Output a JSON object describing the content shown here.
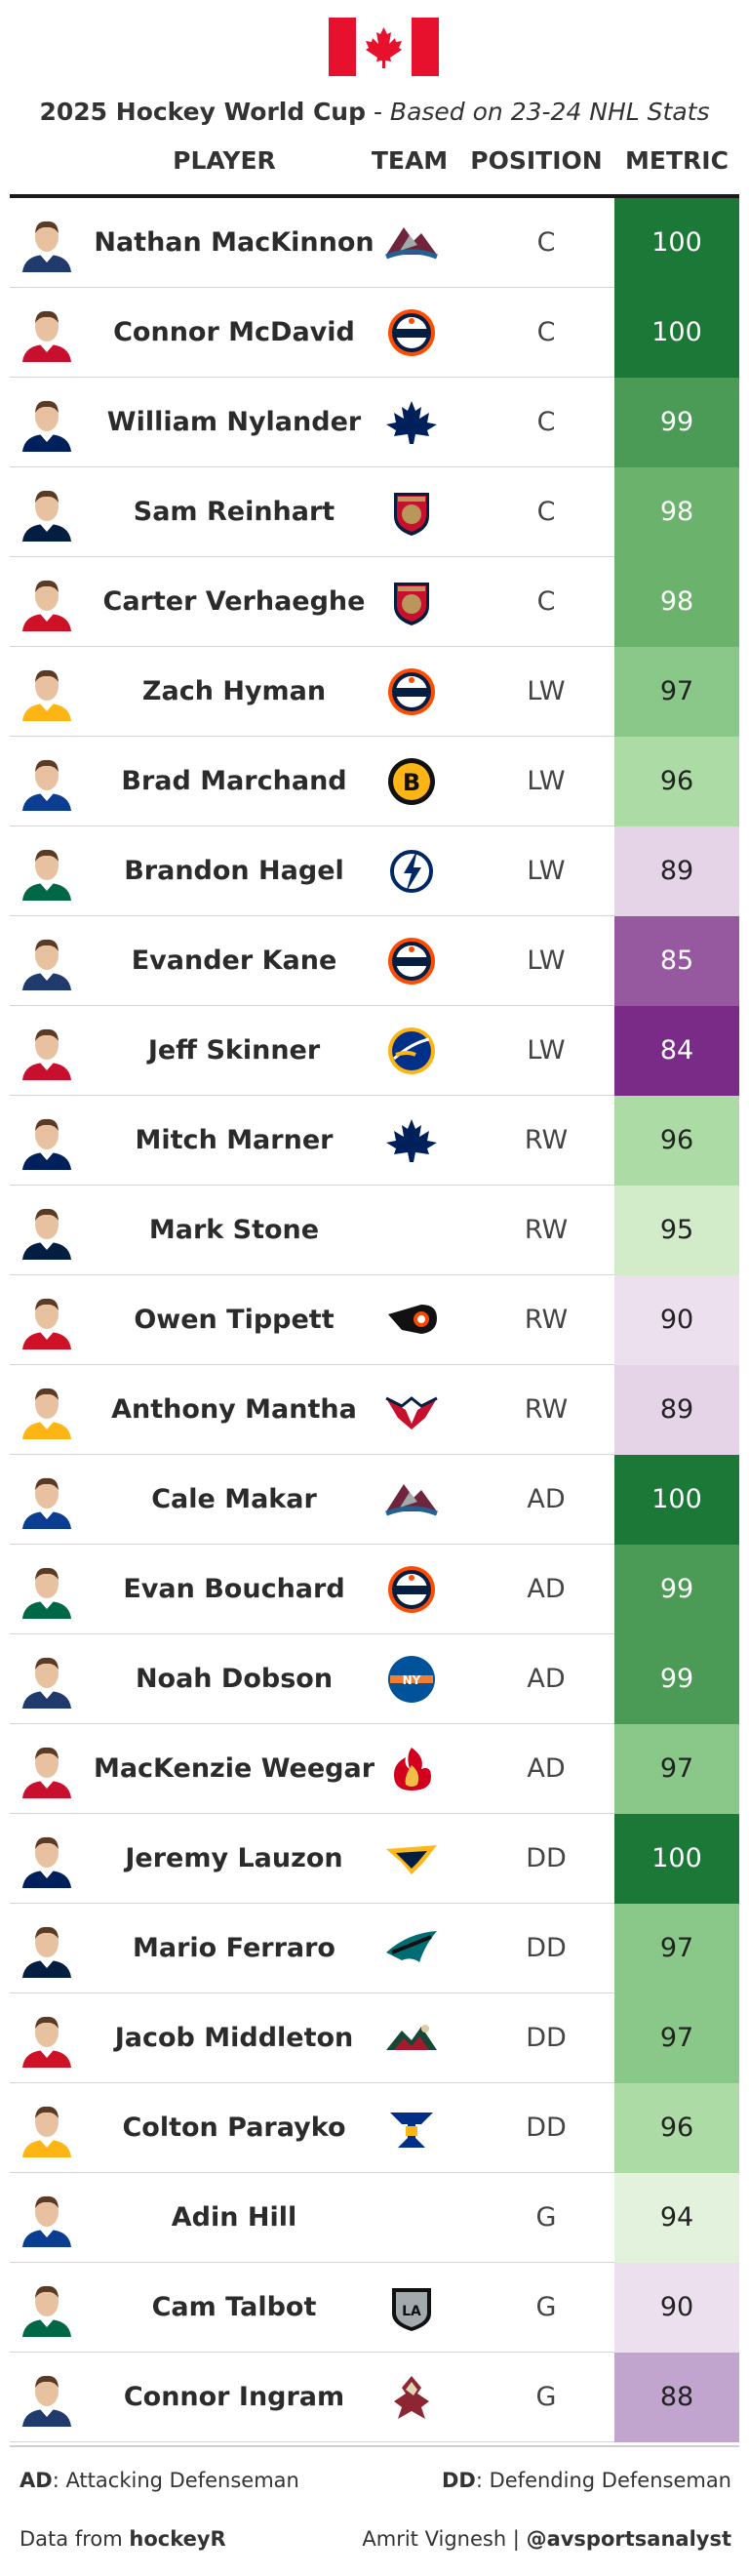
{
  "title": {
    "main": "2025 Hockey World Cup",
    "sep": " - ",
    "sub": "Based on 23-24 NHL Stats"
  },
  "headers": {
    "player": "PLAYER",
    "team": "TEAM",
    "position": "POSITION",
    "metric": "METRIC"
  },
  "colors": {
    "flag_red": "#e8112d",
    "rule": "#1a1a1a"
  },
  "players": [
    {
      "name": "Nathan MacKinnon",
      "team": "avalanche",
      "pos": "C",
      "metric": "100",
      "bg": "#1b7837",
      "fg": "#ffffff"
    },
    {
      "name": "Connor McDavid",
      "team": "oilers",
      "pos": "C",
      "metric": "100",
      "bg": "#1b7837",
      "fg": "#ffffff"
    },
    {
      "name": "William Nylander",
      "team": "mapleleafs",
      "pos": "C",
      "metric": "99",
      "bg": "#4b9a56",
      "fg": "#ffffff"
    },
    {
      "name": "Sam Reinhart",
      "team": "panthers",
      "pos": "C",
      "metric": "98",
      "bg": "#6bb26c",
      "fg": "#ffffff"
    },
    {
      "name": "Carter Verhaeghe",
      "team": "panthers",
      "pos": "C",
      "metric": "98",
      "bg": "#6bb26c",
      "fg": "#ffffff"
    },
    {
      "name": "Zach Hyman",
      "team": "oilers",
      "pos": "LW",
      "metric": "97",
      "bg": "#8ac889",
      "fg": "#222222"
    },
    {
      "name": "Brad Marchand",
      "team": "bruins",
      "pos": "LW",
      "metric": "96",
      "bg": "#acdba6",
      "fg": "#222222"
    },
    {
      "name": "Brandon Hagel",
      "team": "lightning",
      "pos": "LW",
      "metric": "89",
      "bg": "#e5d3e8",
      "fg": "#222222"
    },
    {
      "name": "Evander Kane",
      "team": "oilers",
      "pos": "LW",
      "metric": "85",
      "bg": "#96599f",
      "fg": "#ffffff"
    },
    {
      "name": "Jeff Skinner",
      "team": "sabres",
      "pos": "LW",
      "metric": "84",
      "bg": "#7a2a87",
      "fg": "#ffffff"
    },
    {
      "name": "Mitch Marner",
      "team": "mapleleafs",
      "pos": "RW",
      "metric": "96",
      "bg": "#acdba6",
      "fg": "#222222"
    },
    {
      "name": "Mark Stone",
      "team": "",
      "pos": "RW",
      "metric": "95",
      "bg": "#d2ecc9",
      "fg": "#222222"
    },
    {
      "name": "Owen Tippett",
      "team": "flyers",
      "pos": "RW",
      "metric": "90",
      "bg": "#ece0ee",
      "fg": "#222222"
    },
    {
      "name": "Anthony Mantha",
      "team": "capitals",
      "pos": "RW",
      "metric": "89",
      "bg": "#e5d3e8",
      "fg": "#222222"
    },
    {
      "name": "Cale Makar",
      "team": "avalanche",
      "pos": "AD",
      "metric": "100",
      "bg": "#1b7837",
      "fg": "#ffffff"
    },
    {
      "name": "Evan Bouchard",
      "team": "oilers",
      "pos": "AD",
      "metric": "99",
      "bg": "#4b9a56",
      "fg": "#ffffff"
    },
    {
      "name": "Noah Dobson",
      "team": "islanders",
      "pos": "AD",
      "metric": "99",
      "bg": "#4b9a56",
      "fg": "#ffffff"
    },
    {
      "name": "MacKenzie Weegar",
      "team": "flames",
      "pos": "AD",
      "metric": "97",
      "bg": "#8ac889",
      "fg": "#222222"
    },
    {
      "name": "Jeremy Lauzon",
      "team": "predators",
      "pos": "DD",
      "metric": "100",
      "bg": "#1b7837",
      "fg": "#ffffff"
    },
    {
      "name": "Mario Ferraro",
      "team": "sharks",
      "pos": "DD",
      "metric": "97",
      "bg": "#8ac889",
      "fg": "#222222"
    },
    {
      "name": "Jacob Middleton",
      "team": "wild",
      "pos": "DD",
      "metric": "97",
      "bg": "#8ac889",
      "fg": "#222222"
    },
    {
      "name": "Colton Parayko",
      "team": "blues",
      "pos": "DD",
      "metric": "96",
      "bg": "#acdba6",
      "fg": "#222222"
    },
    {
      "name": "Adin Hill",
      "team": "",
      "pos": "G",
      "metric": "94",
      "bg": "#e2f2dc",
      "fg": "#222222"
    },
    {
      "name": "Cam Talbot",
      "team": "kings",
      "pos": "G",
      "metric": "90",
      "bg": "#ece0ee",
      "fg": "#222222"
    },
    {
      "name": "Connor Ingram",
      "team": "coyotes",
      "pos": "G",
      "metric": "88",
      "bg": "#c2a5cf",
      "fg": "#222222"
    }
  ],
  "footer": {
    "ad_abbr": "AD",
    "ad_text": ": Attacking Defenseman",
    "dd_abbr": "DD",
    "dd_text": ": Defending Defenseman",
    "source_prefix": "Data from ",
    "source_name": "hockeyR",
    "author": "Amrit Vignesh | ",
    "handle": "@avsportsanalyst"
  }
}
